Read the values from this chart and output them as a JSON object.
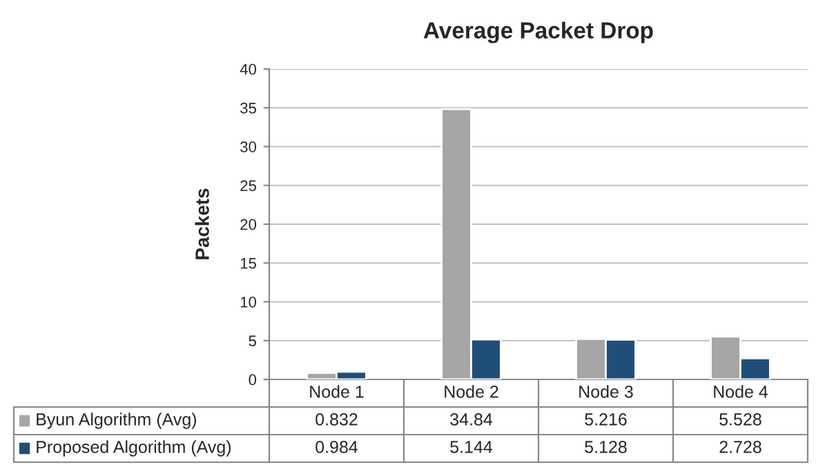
{
  "chart_data": {
    "type": "bar",
    "title": "Average Packet Drop",
    "ylabel": "Packets",
    "categories": [
      "Node 1",
      "Node 2",
      "Node 3",
      "Node 4"
    ],
    "series": [
      {
        "name": "Byun Algorithm (Avg)",
        "color": "#a6a6a6",
        "values": [
          0.832,
          34.84,
          5.216,
          5.528
        ]
      },
      {
        "name": "Proposed Algorithm (Avg)",
        "color": "#1f4e79",
        "values": [
          0.984,
          5.144,
          5.128,
          2.728
        ]
      }
    ],
    "ylim": [
      0,
      40
    ],
    "yticks": [
      0,
      5,
      10,
      15,
      20,
      25,
      30,
      35,
      40
    ],
    "grid": "y",
    "data_labels": true,
    "legend": "bottom"
  }
}
